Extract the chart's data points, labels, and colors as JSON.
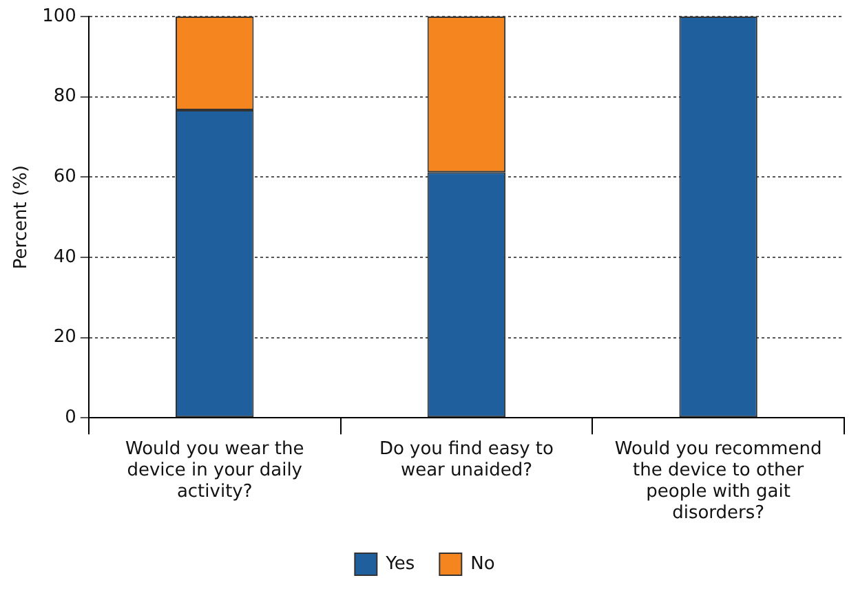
{
  "chart_data": {
    "type": "bar",
    "stacked": true,
    "ylabel": "Percent (%)",
    "categories": [
      "Would you wear the device in your daily activity?",
      "Do you find easy to wear unaided?",
      "Would you recommend the device to other people with gait disorders?"
    ],
    "series": [
      {
        "name": "Yes",
        "color": "#1f5f9e",
        "values": [
          76.7,
          61.2,
          100
        ]
      },
      {
        "name": "No",
        "color": "#f5861f",
        "values": [
          23.3,
          38.8,
          0
        ]
      }
    ],
    "ylim": [
      0,
      100
    ],
    "yticks": [
      0,
      20,
      40,
      60,
      80,
      100
    ],
    "grid": "y",
    "legend": "bottom"
  }
}
